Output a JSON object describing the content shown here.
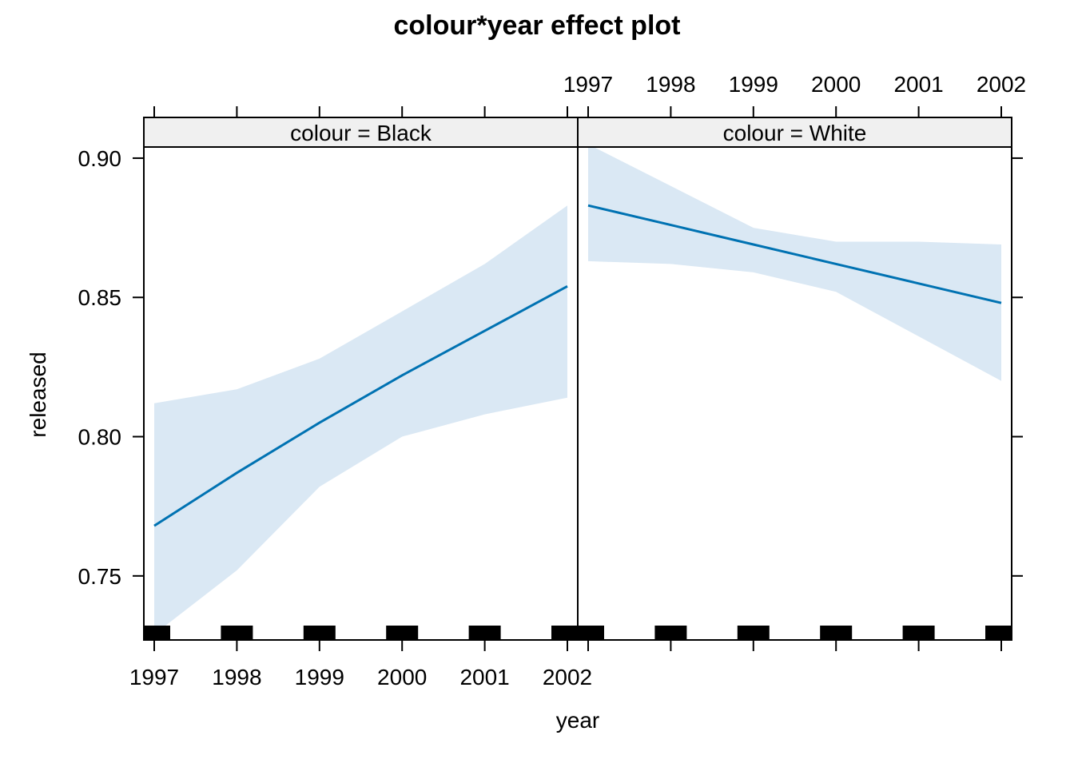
{
  "chart_data": {
    "type": "line",
    "title": "colour*year effect plot",
    "xlabel": "year",
    "ylabel": "released",
    "xlim": [
      1997,
      2002
    ],
    "ylim": [
      0.727,
      0.904
    ],
    "x_ticks": [
      1997,
      1998,
      1999,
      2000,
      2001,
      2002
    ],
    "y_ticks": [
      "0.75",
      "0.80",
      "0.85",
      "0.90"
    ],
    "panels": [
      {
        "strip": "colour = Black",
        "x": [
          1997,
          1998,
          1999,
          2000,
          2001,
          2002
        ],
        "fit": [
          0.768,
          0.787,
          0.805,
          0.822,
          0.838,
          0.854
        ],
        "lower": [
          0.729,
          0.752,
          0.782,
          0.8,
          0.808,
          0.814
        ],
        "upper": [
          0.812,
          0.817,
          0.828,
          0.845,
          0.862,
          0.883
        ],
        "rug": [
          1997,
          1998,
          1999,
          2000,
          2001,
          2002
        ]
      },
      {
        "strip": "colour = White",
        "x": [
          1997,
          1998,
          1999,
          2000,
          2001,
          2002
        ],
        "fit": [
          0.883,
          0.876,
          0.869,
          0.862,
          0.855,
          0.848
        ],
        "lower": [
          0.863,
          0.862,
          0.859,
          0.852,
          0.836,
          0.82
        ],
        "upper": [
          0.905,
          0.89,
          0.875,
          0.87,
          0.87,
          0.869
        ],
        "rug": [
          1997,
          1998,
          1999,
          2000,
          2001,
          2002
        ]
      }
    ],
    "colors": {
      "line": "#0072B2",
      "band": "#DAE8F4",
      "strip_bg": "#F0F0F0",
      "rug": "#000000"
    }
  }
}
